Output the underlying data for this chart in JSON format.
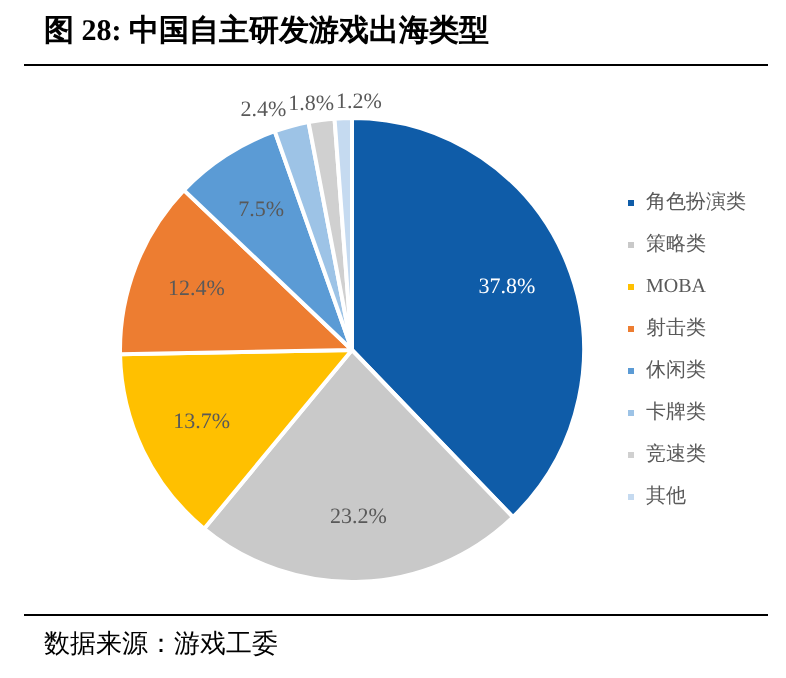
{
  "chart_data": {
    "type": "pie",
    "title": "图 28:  中国自主研发游戏出海类型",
    "categories": [
      "角色扮演类",
      "策略类",
      "MOBA",
      "射击类",
      "休闲类",
      "卡牌类",
      "竞速类",
      "其他"
    ],
    "values": [
      37.8,
      23.2,
      13.7,
      12.4,
      7.5,
      2.4,
      1.8,
      1.2
    ],
    "colors": [
      "#0f5ca8",
      "#c9c9c9",
      "#ffc000",
      "#ed7d31",
      "#5b9bd5",
      "#9dc3e6",
      "#d0d0d0",
      "#c5daf0"
    ],
    "value_labels": [
      "37.8%",
      "23.2%",
      "13.7%",
      "12.4%",
      "7.5%",
      "2.4%",
      "1.8%",
      "1.2%"
    ],
    "legend": "right",
    "annotations": [
      "数据来源：游戏工委"
    ]
  }
}
